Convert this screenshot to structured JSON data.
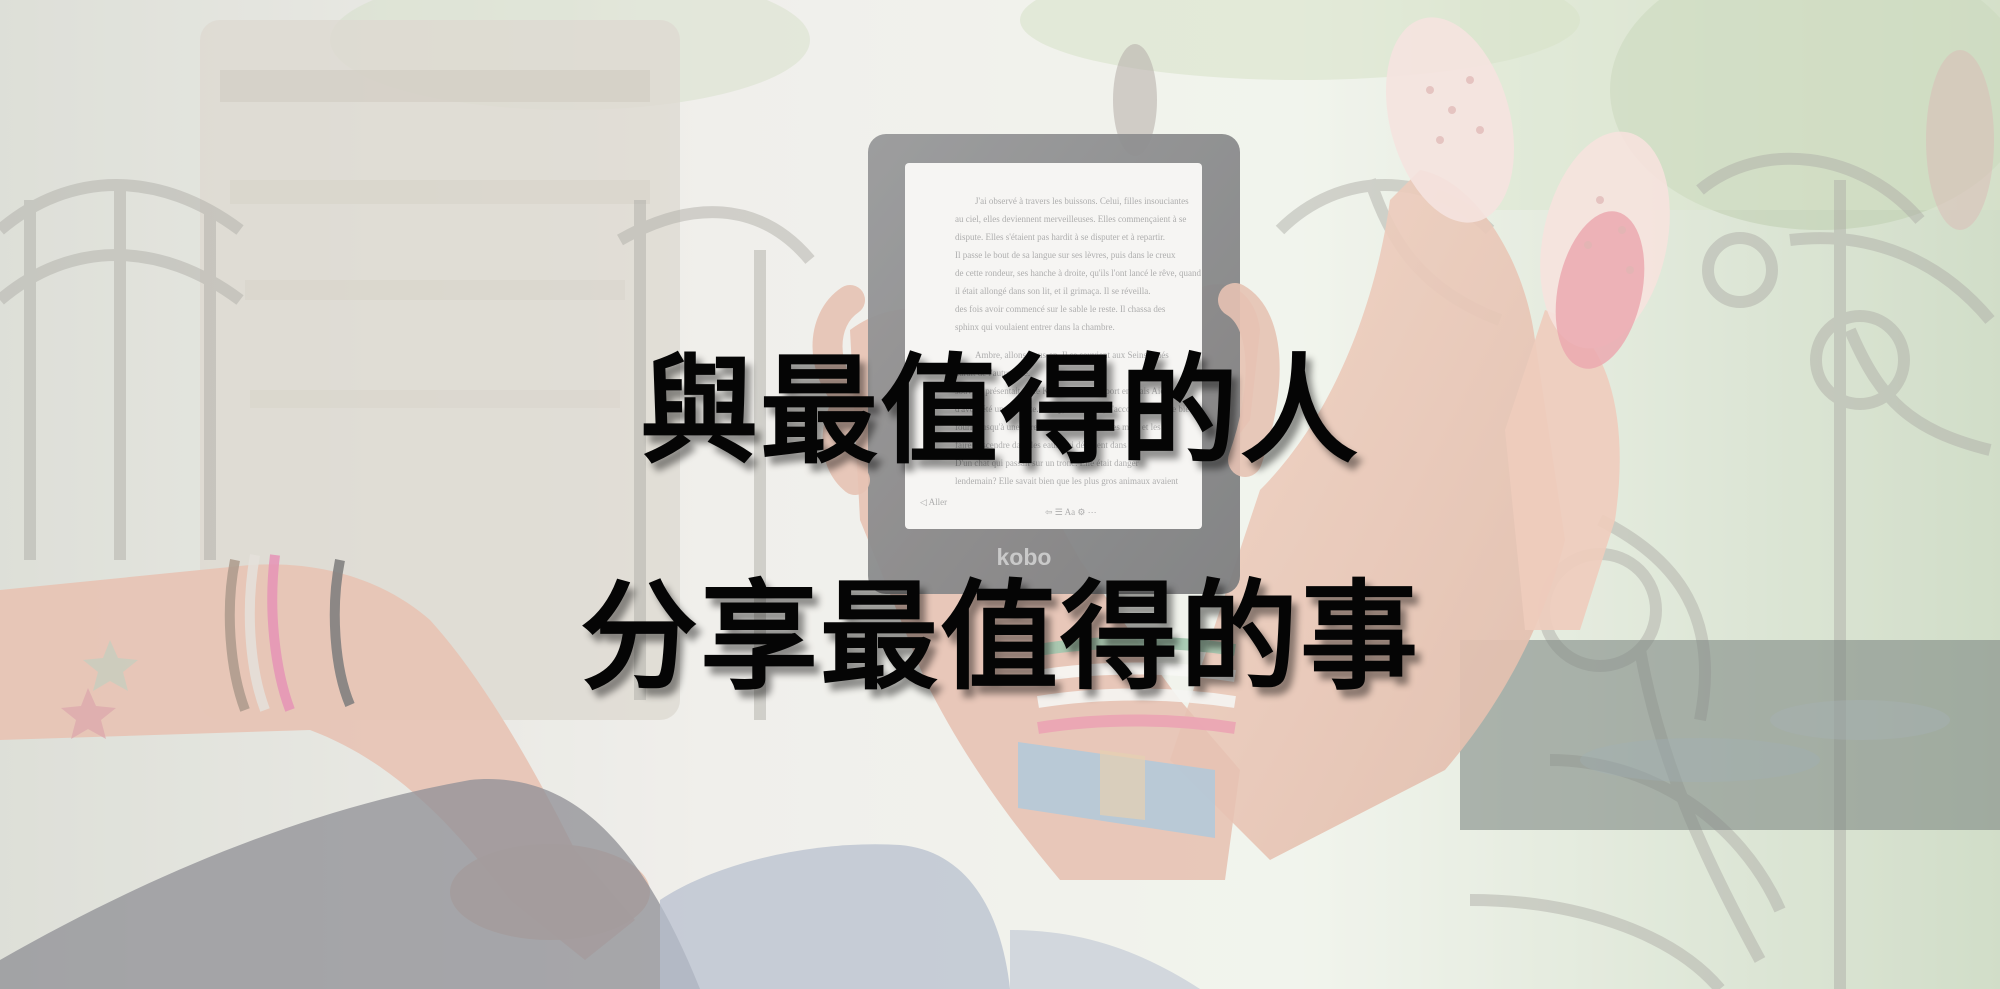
{
  "headline": {
    "line1": "與最值得的人",
    "line2": "分享最值得的事"
  },
  "ereader": {
    "brand": "kobo"
  }
}
